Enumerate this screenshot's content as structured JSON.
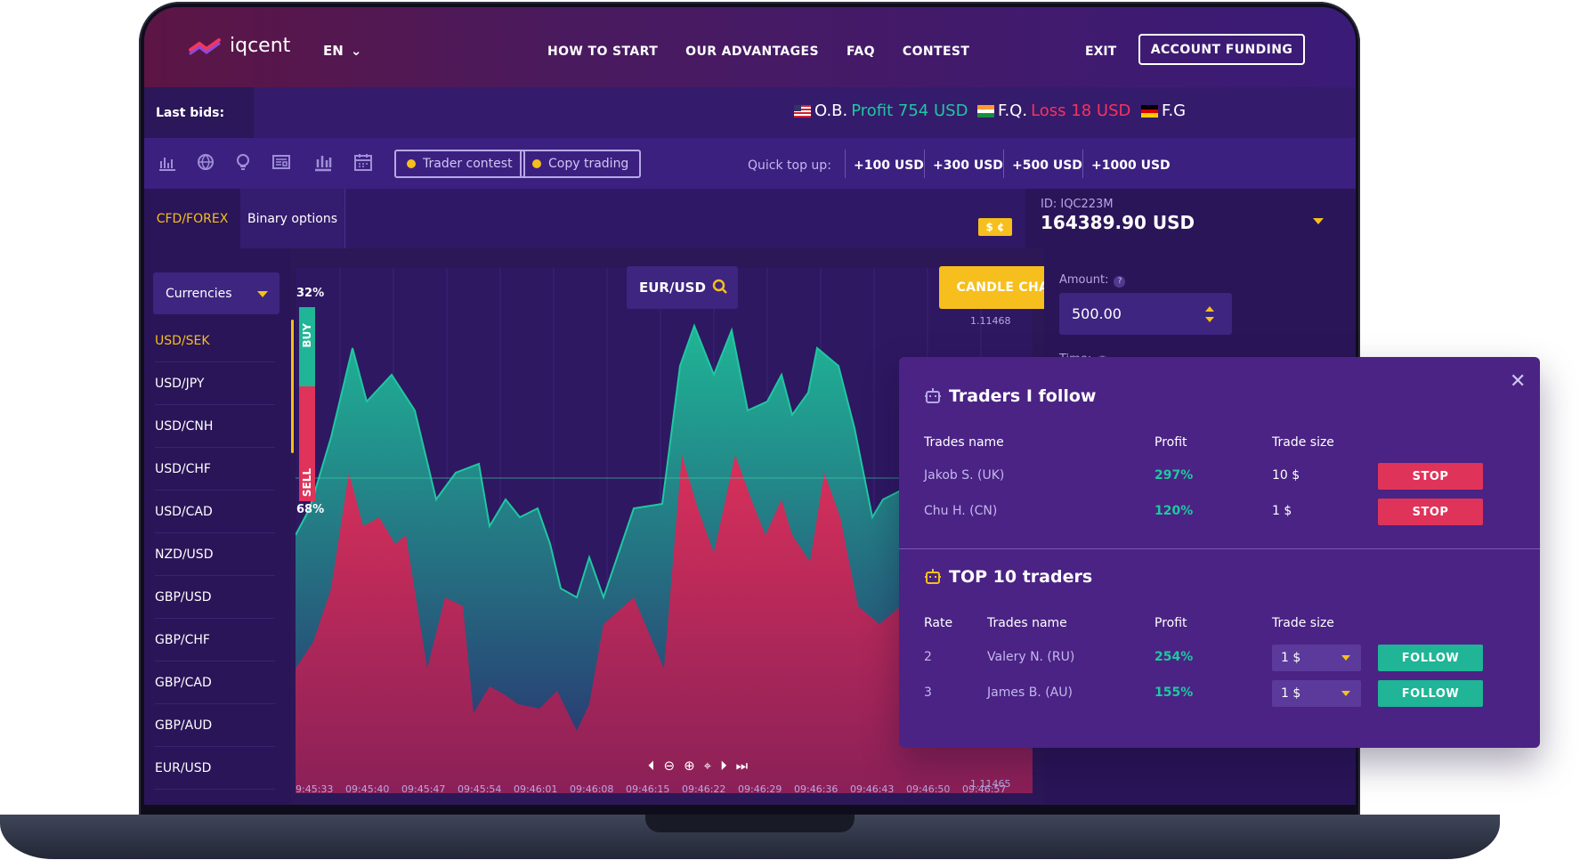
{
  "nav": {
    "logo_text": "iqcent",
    "lang": "EN",
    "menu": [
      "HOW TO START",
      "OUR ADVANTAGES",
      "FAQ",
      "CONTEST"
    ],
    "exit": "EXIT",
    "funding": "ACCOUNT FUNDING"
  },
  "bids": {
    "label": "Last bids:",
    "items": [
      {
        "name": "O.B.",
        "result": "Profit 754 USD",
        "type": "profit",
        "flag": "us-flag"
      },
      {
        "name": "F.Q.",
        "result": "Loss 18 USD",
        "type": "loss",
        "flag": "in-flag"
      },
      {
        "name": "F.G",
        "result": "",
        "type": "profit",
        "flag": "de-flag"
      }
    ]
  },
  "toolbar": {
    "icons": [
      "bar-chart-icon",
      "globe-icon",
      "lightbulb-icon",
      "news-icon",
      "candles-icon",
      "calendar-icon"
    ],
    "trader_contest": "Trader contest",
    "copy_trading": "Copy trading",
    "quick_label": "Quick top up:",
    "quick_amounts": [
      "+100 USD",
      "+300 USD",
      "+500 USD",
      "+1000 USD"
    ]
  },
  "tabs": {
    "cfd": "CFD/FOREX",
    "binary": "Binary options"
  },
  "currency_badge": "$ ¢",
  "account": {
    "id": "ID: IQC223M",
    "balance": "164389.90 USD"
  },
  "left": {
    "select": "Currencies",
    "pairs": [
      "USD/SEK",
      "USD/JPY",
      "USD/CNH",
      "USD/CHF",
      "USD/CAD",
      "NZD/USD",
      "GBP/USD",
      "GBP/CHF",
      "GBP/CAD",
      "GBP/AUD",
      "EUR/USD"
    ]
  },
  "chart": {
    "pair": "EUR/USD",
    "candle_button": "CANDLE CHART",
    "price_top": "1.11468",
    "price_bottom": "1.11465",
    "buy_pct": "32%",
    "sell_pct": "68%",
    "buy_label": "BUY",
    "sell_label": "SELL",
    "times": [
      "9:45:33",
      "09:45:40",
      "09:45:47",
      "09:45:54",
      "09:46:01",
      "09:46:08",
      "09:46:15",
      "09:46:22",
      "09:46:29",
      "09:46:36",
      "09:46:43",
      "09:46:50",
      "09:46:57"
    ],
    "colors": {
      "buy": "#1fb596",
      "sell": "#e0335a"
    }
  },
  "right": {
    "amount_label": "Amount:",
    "amount_value": "500.00",
    "time_label": "Time:"
  },
  "overlay": {
    "follow_title": "Traders I follow",
    "follow_headers": [
      "Trades name",
      "Profit",
      "Trade size"
    ],
    "follow_rows": [
      {
        "name": "Jakob S. (UK)",
        "profit": "297%",
        "size": "10 $",
        "action": "STOP"
      },
      {
        "name": "Chu H. (CN)",
        "profit": "120%",
        "size": "1 $",
        "action": "STOP"
      }
    ],
    "top_title": "TOP 10 traders",
    "top_headers": [
      "Rate",
      "Trades name",
      "Profit",
      "Trade size"
    ],
    "top_rows": [
      {
        "rate": "2",
        "name": "Valery N. (RU)",
        "profit": "254%",
        "size": "1 $",
        "action": "FOLLOW"
      },
      {
        "rate": "3",
        "name": "James B. (AU)",
        "profit": "155%",
        "size": "1 $",
        "action": "FOLLOW"
      }
    ]
  }
}
